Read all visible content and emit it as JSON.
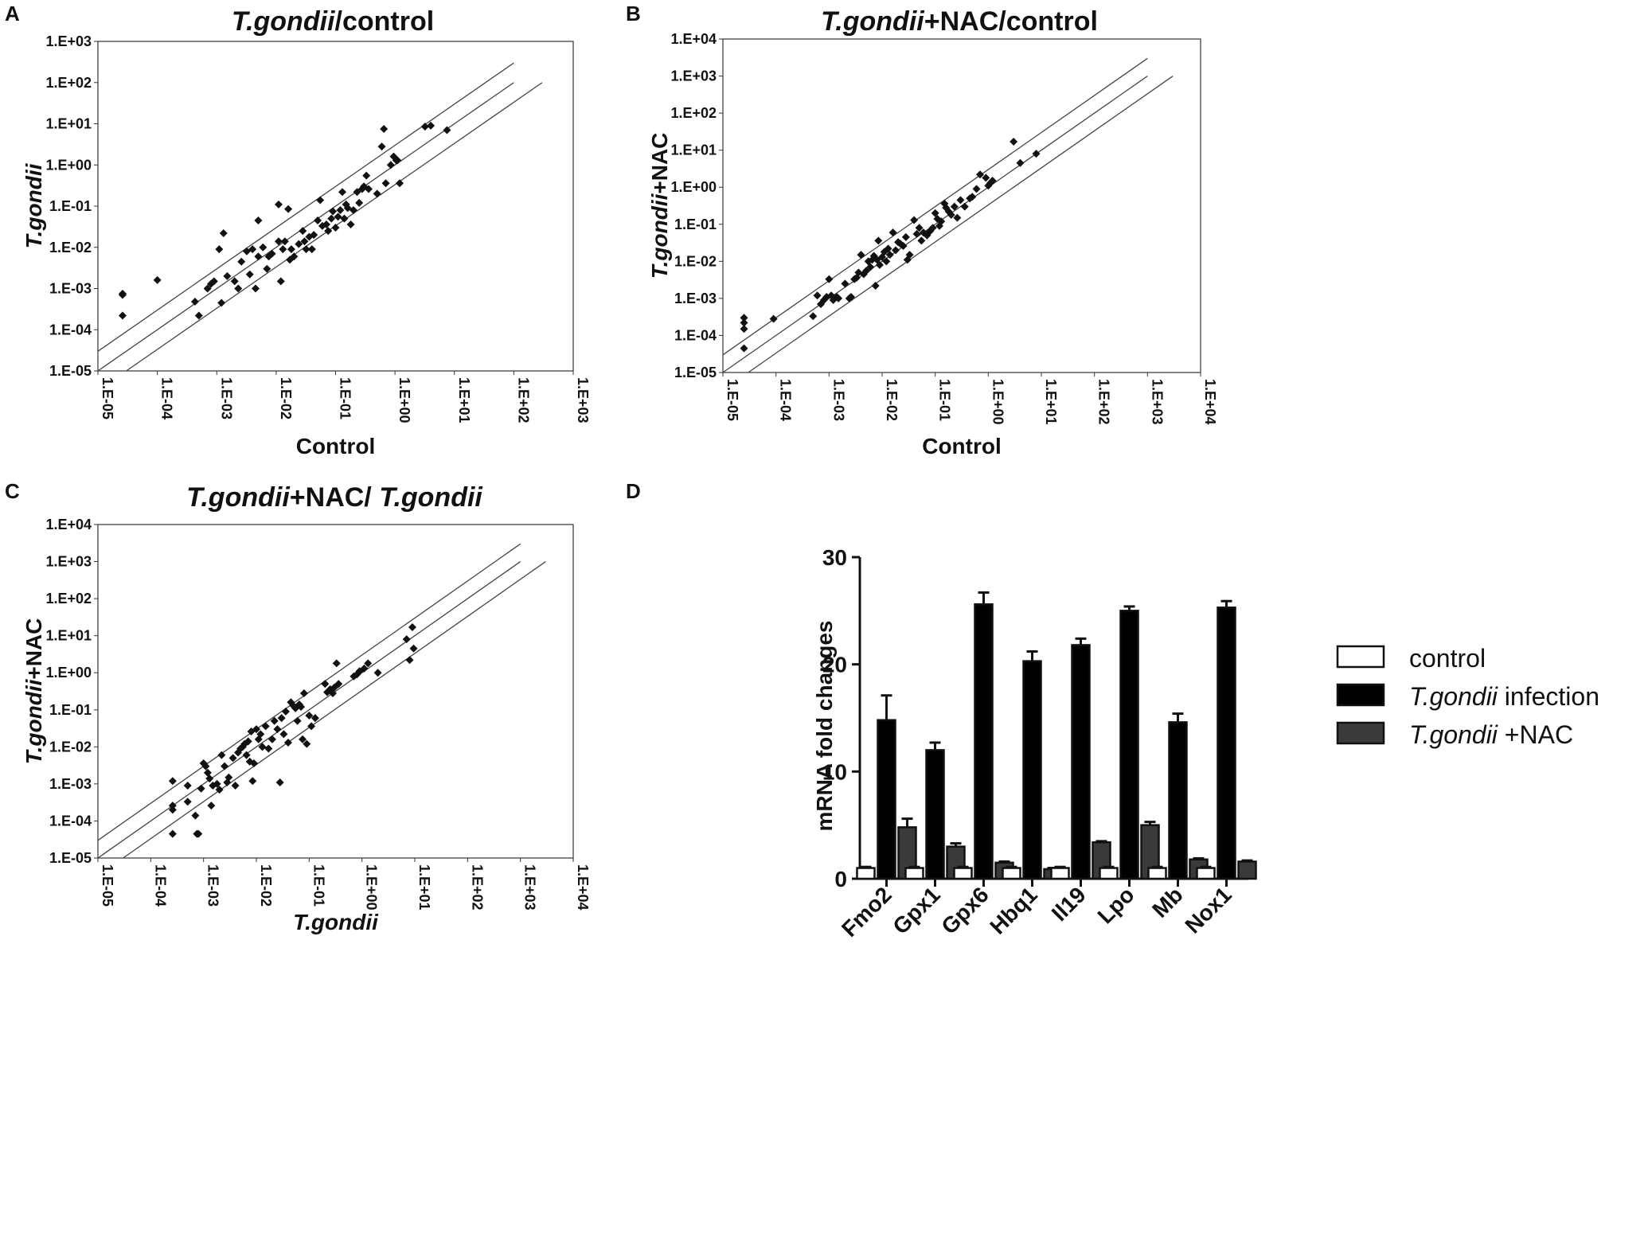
{
  "figure": {
    "panels": [
      {
        "letter": "A",
        "title_italic": "T.gondii",
        "title_rest": "/control",
        "xlabel": "Control",
        "xlabel_italic": false,
        "ylabel": "T.gondii"
      },
      {
        "letter": "B",
        "title_italic": "T.gondii",
        "title_rest": "+NAC/control",
        "xlabel": "Control",
        "xlabel_italic": false,
        "ylabel_italic": "T.gondii",
        "ylabel_rest": "+NAC"
      },
      {
        "letter": "C",
        "title_italic": "T.gondii",
        "title_rest": "+NAC/ ",
        "title_italic2": "T.gondii",
        "xlabel": "T.gondii",
        "xlabel_italic": true,
        "ylabel_italic": "T.gondii",
        "ylabel_rest": "+NAC"
      },
      {
        "letter": "D"
      }
    ],
    "legend": [
      {
        "label": "control",
        "italic": "",
        "rest": "control"
      },
      {
        "label": "T.gondii infection",
        "italic": "T.gondii",
        "rest": " infection"
      },
      {
        "label": "T.gondii +NAC",
        "italic": "T.gondii",
        "rest": " +NAC"
      }
    ]
  },
  "chart_data": [
    {
      "type": "scatter",
      "title": "T.gondii/control",
      "xlabel": "Control",
      "ylabel": "T.gondii",
      "scale": "log10",
      "xlim": [
        1e-05,
        1000.0
      ],
      "ylim": [
        1e-05,
        1000.0
      ],
      "x_ticks": [
        "1.E-05",
        "1.E-04",
        "1.E-03",
        "1.E-02",
        "1.E-01",
        "1.E+00",
        "1.E+01",
        "1.E+02",
        "1.E+03"
      ],
      "y_ticks": [
        "1.E-05",
        "1.E-04",
        "1.E-03",
        "1.E-02",
        "1.E-01",
        "1.E+00",
        "1.E+01",
        "1.E+02",
        "1.E+03"
      ],
      "reference_lines": [
        {
          "fold": 3,
          "x_range": [
            1e-05,
            100
          ]
        },
        {
          "fold": 1,
          "x_range": [
            1e-05,
            100
          ]
        },
        {
          "fold": 0.333,
          "x_range": [
            2.5e-05,
            300
          ]
        }
      ],
      "points": [
        [
          2.6e-05,
          0.0007
        ],
        [
          2.6e-05,
          0.00075
        ],
        [
          2.6e-05,
          0.00022
        ],
        [
          0.0001,
          0.0016
        ],
        [
          0.00043,
          0.00048
        ],
        [
          0.0005,
          0.00022
        ],
        [
          0.0007,
          0.001
        ],
        [
          0.0008,
          0.0013
        ],
        [
          0.0009,
          0.0015
        ],
        [
          0.0011,
          0.009
        ],
        [
          0.0013,
          0.022
        ],
        [
          0.0012,
          0.00045
        ],
        [
          0.0015,
          0.002
        ],
        [
          0.002,
          0.0015
        ],
        [
          0.0023,
          0.001
        ],
        [
          0.0026,
          0.0045
        ],
        [
          0.0032,
          0.008
        ],
        [
          0.004,
          0.009
        ],
        [
          0.0036,
          0.0022
        ],
        [
          0.0045,
          0.001
        ],
        [
          0.005,
          0.045
        ],
        [
          0.005,
          0.006
        ],
        [
          0.006,
          0.01
        ],
        [
          0.007,
          0.003
        ],
        [
          0.0075,
          0.006
        ],
        [
          0.0085,
          0.007
        ],
        [
          0.011,
          0.11
        ],
        [
          0.011,
          0.014
        ],
        [
          0.012,
          0.0015
        ],
        [
          0.013,
          0.009
        ],
        [
          0.014,
          0.014
        ],
        [
          0.016,
          0.085
        ],
        [
          0.017,
          0.005
        ],
        [
          0.018,
          0.009
        ],
        [
          0.02,
          0.006
        ],
        [
          0.024,
          0.012
        ],
        [
          0.028,
          0.025
        ],
        [
          0.03,
          0.014
        ],
        [
          0.032,
          0.009
        ],
        [
          0.036,
          0.018
        ],
        [
          0.04,
          0.009
        ],
        [
          0.043,
          0.02
        ],
        [
          0.05,
          0.045
        ],
        [
          0.055,
          0.14
        ],
        [
          0.06,
          0.033
        ],
        [
          0.07,
          0.036
        ],
        [
          0.075,
          0.025
        ],
        [
          0.085,
          0.05
        ],
        [
          0.09,
          0.075
        ],
        [
          0.1,
          0.03
        ],
        [
          0.11,
          0.055
        ],
        [
          0.12,
          0.08
        ],
        [
          0.13,
          0.22
        ],
        [
          0.14,
          0.05
        ],
        [
          0.15,
          0.11
        ],
        [
          0.16,
          0.09
        ],
        [
          0.18,
          0.036
        ],
        [
          0.2,
          0.08
        ],
        [
          0.23,
          0.22
        ],
        [
          0.25,
          0.12
        ],
        [
          0.28,
          0.26
        ],
        [
          0.3,
          0.3
        ],
        [
          0.33,
          0.55
        ],
        [
          0.36,
          0.26
        ],
        [
          0.5,
          0.2
        ],
        [
          0.6,
          2.8
        ],
        [
          0.65,
          7.5
        ],
        [
          0.7,
          0.36
        ],
        [
          0.85,
          1
        ],
        [
          0.95,
          1.6
        ],
        [
          1.05,
          1.3
        ],
        [
          1.1,
          1.3
        ],
        [
          1.2,
          0.36
        ],
        [
          3.2,
          8.5
        ],
        [
          4,
          9
        ],
        [
          7.5,
          7
        ]
      ]
    },
    {
      "type": "scatter",
      "title": "T.gondii+NAC/control",
      "xlabel": "Control",
      "ylabel": "T.gondii+NAC",
      "scale": "log10",
      "xlim": [
        1e-05,
        10000.0
      ],
      "ylim": [
        1e-05,
        10000.0
      ],
      "x_ticks": [
        "1.E-05",
        "1.E-04",
        "1.E-03",
        "1.E-02",
        "1.E-01",
        "1.E+00",
        "1.E+01",
        "1.E+02",
        "1.E+03",
        "1.E+04"
      ],
      "y_ticks": [
        "1.E-05",
        "1.E-04",
        "1.E-03",
        "1.E-02",
        "1.E-01",
        "1.E+00",
        "1.E+01",
        "1.E+02",
        "1.E+03",
        "1.E+04"
      ],
      "reference_lines": [
        {
          "fold": 3,
          "x_range": [
            1e-05,
            1000
          ]
        },
        {
          "fold": 1,
          "x_range": [
            1e-05,
            1000
          ]
        },
        {
          "fold": 0.333,
          "x_range": [
            3e-05,
            3000
          ]
        }
      ],
      "points": [
        [
          2.5e-05,
          0.0003
        ],
        [
          2.5e-05,
          0.00022
        ],
        [
          2.5e-05,
          0.00015
        ],
        [
          2.5e-05,
          4.5e-05
        ],
        [
          9e-05,
          0.00028
        ],
        [
          0.0005,
          0.00033
        ],
        [
          0.0006,
          0.0012
        ],
        [
          0.0007,
          0.0007
        ],
        [
          0.0008,
          0.0009
        ],
        [
          0.0009,
          0.0011
        ],
        [
          0.001,
          0.0033
        ],
        [
          0.0011,
          0.0012
        ],
        [
          0.0012,
          0.0009
        ],
        [
          0.0014,
          0.0011
        ],
        [
          0.0015,
          0.001
        ],
        [
          0.002,
          0.0025
        ],
        [
          0.0024,
          0.001
        ],
        [
          0.0026,
          0.0011
        ],
        [
          0.003,
          0.0033
        ],
        [
          0.0033,
          0.0036
        ],
        [
          0.0036,
          0.005
        ],
        [
          0.004,
          0.015
        ],
        [
          0.0045,
          0.0045
        ],
        [
          0.005,
          0.0055
        ],
        [
          0.0055,
          0.01
        ],
        [
          0.006,
          0.007
        ],
        [
          0.0065,
          0.011
        ],
        [
          0.007,
          0.014
        ],
        [
          0.0075,
          0.0022
        ],
        [
          0.008,
          0.011
        ],
        [
          0.0085,
          0.036
        ],
        [
          0.009,
          0.008
        ],
        [
          0.01,
          0.013
        ],
        [
          0.011,
          0.018
        ],
        [
          0.012,
          0.01
        ],
        [
          0.013,
          0.022
        ],
        [
          0.014,
          0.015
        ],
        [
          0.016,
          0.06
        ],
        [
          0.018,
          0.02
        ],
        [
          0.02,
          0.033
        ],
        [
          0.022,
          0.03
        ],
        [
          0.025,
          0.026
        ],
        [
          0.028,
          0.045
        ],
        [
          0.03,
          0.011
        ],
        [
          0.033,
          0.015
        ],
        [
          0.04,
          0.13
        ],
        [
          0.045,
          0.055
        ],
        [
          0.05,
          0.08
        ],
        [
          0.055,
          0.036
        ],
        [
          0.06,
          0.06
        ],
        [
          0.07,
          0.05
        ],
        [
          0.08,
          0.065
        ],
        [
          0.09,
          0.08
        ],
        [
          0.1,
          0.2
        ],
        [
          0.11,
          0.14
        ],
        [
          0.12,
          0.09
        ],
        [
          0.13,
          0.12
        ],
        [
          0.15,
          0.36
        ],
        [
          0.16,
          0.28
        ],
        [
          0.18,
          0.22
        ],
        [
          0.2,
          0.18
        ],
        [
          0.23,
          0.3
        ],
        [
          0.26,
          0.15
        ],
        [
          0.3,
          0.45
        ],
        [
          0.36,
          0.3
        ],
        [
          0.45,
          0.5
        ],
        [
          0.5,
          0.55
        ],
        [
          0.6,
          0.9
        ],
        [
          0.7,
          2.2
        ],
        [
          0.9,
          1.8
        ],
        [
          1.0,
          1.1
        ],
        [
          1.1,
          1.3
        ],
        [
          1.2,
          1.5
        ],
        [
          3,
          17
        ],
        [
          4,
          4.5
        ],
        [
          8,
          8
        ]
      ]
    },
    {
      "type": "scatter",
      "title": "T.gondii+NAC/ T.gondii",
      "xlabel": "T.gondii",
      "ylabel": "T.gondii+NAC",
      "scale": "log10",
      "xlim": [
        1e-05,
        10000.0
      ],
      "ylim": [
        1e-05,
        10000.0
      ],
      "x_ticks": [
        "1.E-05",
        "1.E-04",
        "1.E-03",
        "1.E-02",
        "1.E-01",
        "1.E+00",
        "1.E+01",
        "1.E+02",
        "1.E+03",
        "1.E+04"
      ],
      "y_ticks": [
        "1.E-05",
        "1.E-04",
        "1.E-03",
        "1.E-02",
        "1.E-01",
        "1.E+00",
        "1.E+01",
        "1.E+02",
        "1.E+03",
        "1.E+04"
      ],
      "reference_lines": [
        {
          "fold": 3,
          "x_range": [
            1e-05,
            1000
          ]
        },
        {
          "fold": 1,
          "x_range": [
            1e-05,
            1000
          ]
        },
        {
          "fold": 0.333,
          "x_range": [
            3e-05,
            3000
          ]
        }
      ],
      "points": [
        [
          0.00026,
          0.0012
        ],
        [
          0.00026,
          0.00026
        ],
        [
          0.00026,
          0.0002
        ],
        [
          0.00026,
          4.5e-05
        ],
        [
          0.0005,
          0.0009
        ],
        [
          0.0005,
          0.00033
        ],
        [
          0.0007,
          0.00014
        ],
        [
          0.00075,
          4.5e-05
        ],
        [
          0.0008,
          4.5e-05
        ],
        [
          0.0009,
          0.00075
        ],
        [
          0.001,
          0.0036
        ],
        [
          0.0011,
          0.003
        ],
        [
          0.0012,
          0.002
        ],
        [
          0.0013,
          0.0014
        ],
        [
          0.0015,
          0.0009
        ],
        [
          0.0014,
          0.00026
        ],
        [
          0.0018,
          0.001
        ],
        [
          0.002,
          0.0007
        ],
        [
          0.0022,
          0.006
        ],
        [
          0.0025,
          0.003
        ],
        [
          0.0028,
          0.0011
        ],
        [
          0.003,
          0.0015
        ],
        [
          0.0036,
          0.005
        ],
        [
          0.004,
          0.0009
        ],
        [
          0.0045,
          0.007
        ],
        [
          0.005,
          0.009
        ],
        [
          0.0055,
          0.01
        ],
        [
          0.006,
          0.012
        ],
        [
          0.0065,
          0.006
        ],
        [
          0.007,
          0.014
        ],
        [
          0.0075,
          0.004
        ],
        [
          0.008,
          0.026
        ],
        [
          0.0085,
          0.0012
        ],
        [
          0.009,
          0.0036
        ],
        [
          0.01,
          0.03
        ],
        [
          0.011,
          0.016
        ],
        [
          0.012,
          0.022
        ],
        [
          0.013,
          0.01
        ],
        [
          0.015,
          0.036
        ],
        [
          0.017,
          0.009
        ],
        [
          0.02,
          0.016
        ],
        [
          0.022,
          0.05
        ],
        [
          0.025,
          0.03
        ],
        [
          0.028,
          0.0011
        ],
        [
          0.03,
          0.06
        ],
        [
          0.033,
          0.022
        ],
        [
          0.036,
          0.09
        ],
        [
          0.04,
          0.013
        ],
        [
          0.045,
          0.16
        ],
        [
          0.05,
          0.13
        ],
        [
          0.055,
          0.11
        ],
        [
          0.06,
          0.05
        ],
        [
          0.065,
          0.14
        ],
        [
          0.07,
          0.12
        ],
        [
          0.075,
          0.016
        ],
        [
          0.08,
          0.28
        ],
        [
          0.09,
          0.012
        ],
        [
          0.1,
          0.07
        ],
        [
          0.11,
          0.036
        ],
        [
          0.13,
          0.06
        ],
        [
          0.2,
          0.5
        ],
        [
          0.22,
          0.3
        ],
        [
          0.25,
          0.36
        ],
        [
          0.28,
          0.28
        ],
        [
          0.3,
          0.4
        ],
        [
          0.33,
          1.8
        ],
        [
          0.36,
          0.5
        ],
        [
          0.7,
          0.8
        ],
        [
          0.8,
          0.9
        ],
        [
          0.9,
          1.1
        ],
        [
          1.1,
          1.3
        ],
        [
          1.3,
          1.8
        ],
        [
          2.0,
          1.0
        ],
        [
          7,
          8
        ],
        [
          8,
          2.2
        ],
        [
          9,
          17
        ],
        [
          9.5,
          4.5
        ]
      ]
    },
    {
      "type": "bar",
      "ylabel": "mRNA fold changes",
      "ylim": [
        0,
        30
      ],
      "y_ticks": [
        "0",
        "10",
        "20",
        "30"
      ],
      "categories": [
        "Fmo2",
        "Gpx1",
        "Gpx6",
        "Hbq1",
        "Il19",
        "Lpo",
        "Mb",
        "Nox1"
      ],
      "series": [
        {
          "name": "control",
          "color": "#ffffff",
          "values": [
            1,
            1,
            1,
            1,
            1,
            1,
            1,
            1
          ],
          "errors": [
            0.1,
            0.1,
            0.1,
            0.1,
            0.1,
            0.1,
            0.1,
            0.1
          ]
        },
        {
          "name": "T.gondii infection",
          "color": "#000000",
          "values": [
            14.8,
            12.0,
            25.6,
            20.3,
            21.8,
            25.0,
            14.6,
            25.3
          ],
          "errors": [
            2.3,
            0.7,
            1.1,
            0.9,
            0.6,
            0.4,
            0.8,
            0.6
          ]
        },
        {
          "name": "T.gondii +NAC",
          "color": "#3a3a3a",
          "values": [
            4.8,
            3.0,
            1.5,
            0.9,
            3.4,
            5.0,
            1.8,
            1.6
          ],
          "errors": [
            0.8,
            0.3,
            0.1,
            0.1,
            0.1,
            0.3,
            0.1,
            0.1
          ]
        }
      ],
      "legend_position": "top-right"
    }
  ]
}
